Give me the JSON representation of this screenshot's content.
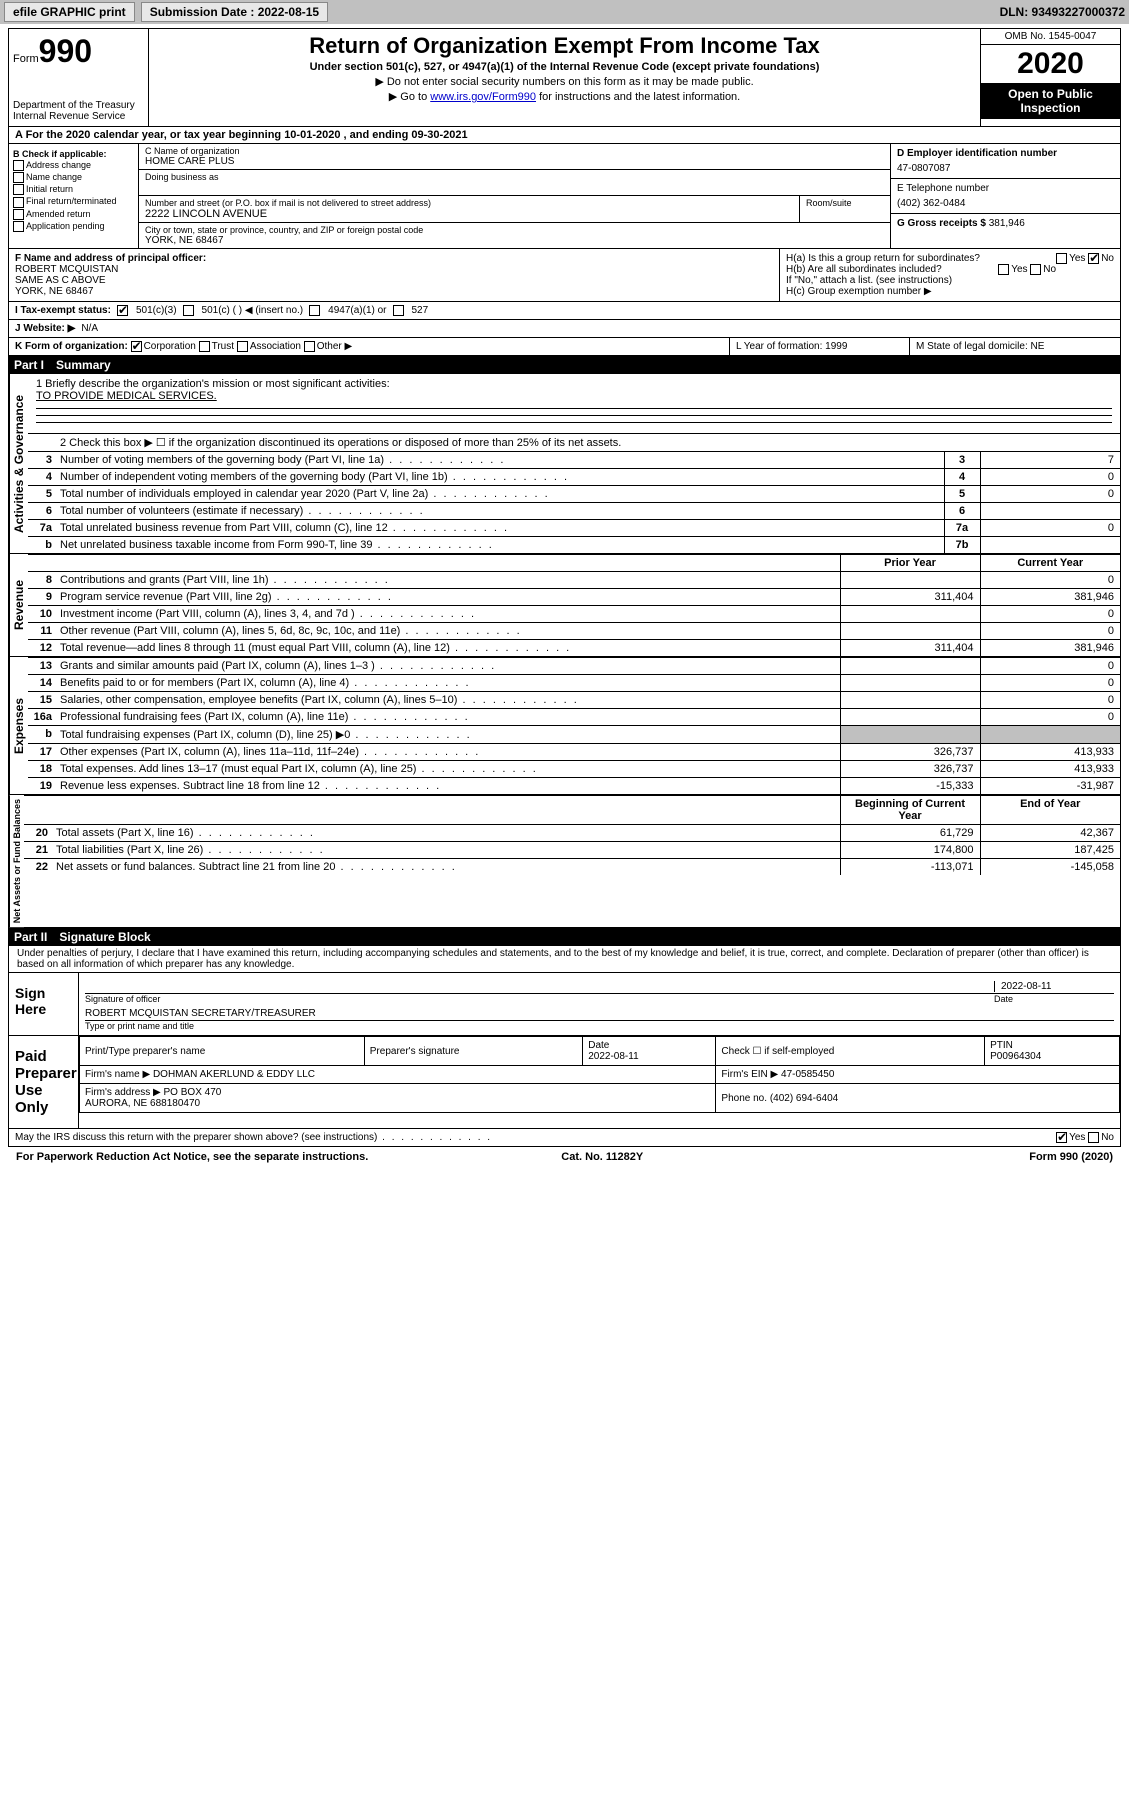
{
  "topbar": {
    "efile": "efile GRAPHIC print",
    "sub_label": "Submission Date : 2022-08-15",
    "dln": "DLN: 93493227000372"
  },
  "header": {
    "form_word": "Form",
    "form_num": "990",
    "dept": "Department of the Treasury\nInternal Revenue Service",
    "title": "Return of Organization Exempt From Income Tax",
    "sub": "Under section 501(c), 527, or 4947(a)(1) of the Internal Revenue Code (except private foundations)",
    "note1": "▶ Do not enter social security numbers on this form as it may be made public.",
    "note2_pre": "▶ Go to ",
    "note2_link": "www.irs.gov/Form990",
    "note2_post": " for instructions and the latest information.",
    "omb": "OMB No. 1545-0047",
    "year": "2020",
    "inspect": "Open to Public Inspection"
  },
  "rowA": "A For the 2020 calendar year, or tax year beginning 10-01-2020   , and ending 09-30-2021",
  "boxB": {
    "title": "B Check if applicable:",
    "items": [
      "Address change",
      "Name change",
      "Initial return",
      "Final return/terminated",
      "Amended return",
      "Application pending"
    ]
  },
  "boxC": {
    "name_label": "C Name of organization",
    "name": "HOME CARE PLUS",
    "dba_label": "Doing business as",
    "addr_label": "Number and street (or P.O. box if mail is not delivered to street address)",
    "room_label": "Room/suite",
    "addr": "2222 LINCOLN AVENUE",
    "city_label": "City or town, state or province, country, and ZIP or foreign postal code",
    "city": "YORK, NE  68467"
  },
  "boxD": {
    "ein_label": "D Employer identification number",
    "ein": "47-0807087",
    "phone_label": "E Telephone number",
    "phone": "(402) 362-0484",
    "gross_label": "G Gross receipts $",
    "gross": "381,946"
  },
  "boxF": {
    "label": "F  Name and address of principal officer:",
    "name": "ROBERT MCQUISTAN",
    "l2": "SAME AS C ABOVE",
    "l3": "YORK, NE  68467"
  },
  "boxH": {
    "a": "H(a)  Is this a group return for subordinates?",
    "a_yes": "Yes",
    "a_no": "No",
    "b": "H(b)  Are all subordinates included?",
    "b_yes": "Yes",
    "b_no": "No",
    "b_note": "If \"No,\" attach a list. (see instructions)",
    "c": "H(c)  Group exemption number ▶"
  },
  "rowI": {
    "label": "I   Tax-exempt status:",
    "o1": "501(c)(3)",
    "o2": "501(c) (  ) ◀ (insert no.)",
    "o3": "4947(a)(1) or",
    "o4": "527"
  },
  "rowJ": {
    "label": "J   Website: ▶",
    "val": "N/A"
  },
  "rowK": {
    "k": "K Form of organization:",
    "k1": "Corporation",
    "k2": "Trust",
    "k3": "Association",
    "k4": "Other ▶",
    "l": "L Year of formation: 1999",
    "m": "M State of legal domicile: NE"
  },
  "part1": {
    "num": "Part I",
    "title": "Summary"
  },
  "summary": {
    "line1_label": "1  Briefly describe the organization's mission or most significant activities:",
    "line1_val": "TO PROVIDE MEDICAL SERVICES.",
    "line2": "2   Check this box ▶ ☐  if the organization discontinued its operations or disposed of more than 25% of its net assets.",
    "rows_gov": [
      {
        "n": "3",
        "t": "Number of voting members of the governing body (Part VI, line 1a)",
        "b": "3",
        "v": "7"
      },
      {
        "n": "4",
        "t": "Number of independent voting members of the governing body (Part VI, line 1b)",
        "b": "4",
        "v": "0"
      },
      {
        "n": "5",
        "t": "Total number of individuals employed in calendar year 2020 (Part V, line 2a)",
        "b": "5",
        "v": "0"
      },
      {
        "n": "6",
        "t": "Total number of volunteers (estimate if necessary)",
        "b": "6",
        "v": ""
      },
      {
        "n": "7a",
        "t": "Total unrelated business revenue from Part VIII, column (C), line 12",
        "b": "7a",
        "v": "0"
      },
      {
        "n": "b",
        "t": "Net unrelated business taxable income from Form 990-T, line 39",
        "b": "7b",
        "v": ""
      }
    ],
    "col_prior": "Prior Year",
    "col_current": "Current Year",
    "rows_rev": [
      {
        "n": "8",
        "t": "Contributions and grants (Part VIII, line 1h)",
        "p": "",
        "c": "0"
      },
      {
        "n": "9",
        "t": "Program service revenue (Part VIII, line 2g)",
        "p": "311,404",
        "c": "381,946"
      },
      {
        "n": "10",
        "t": "Investment income (Part VIII, column (A), lines 3, 4, and 7d )",
        "p": "",
        "c": "0"
      },
      {
        "n": "11",
        "t": "Other revenue (Part VIII, column (A), lines 5, 6d, 8c, 9c, 10c, and 11e)",
        "p": "",
        "c": "0"
      },
      {
        "n": "12",
        "t": "Total revenue—add lines 8 through 11 (must equal Part VIII, column (A), line 12)",
        "p": "311,404",
        "c": "381,946"
      }
    ],
    "rows_exp": [
      {
        "n": "13",
        "t": "Grants and similar amounts paid (Part IX, column (A), lines 1–3 )",
        "p": "",
        "c": "0"
      },
      {
        "n": "14",
        "t": "Benefits paid to or for members (Part IX, column (A), line 4)",
        "p": "",
        "c": "0"
      },
      {
        "n": "15",
        "t": "Salaries, other compensation, employee benefits (Part IX, column (A), lines 5–10)",
        "p": "",
        "c": "0"
      },
      {
        "n": "16a",
        "t": "Professional fundraising fees (Part IX, column (A), line 11e)",
        "p": "",
        "c": "0"
      },
      {
        "n": "b",
        "t": "Total fundraising expenses (Part IX, column (D), line 25) ▶0",
        "p": "SHADE",
        "c": "SHADE"
      },
      {
        "n": "17",
        "t": "Other expenses (Part IX, column (A), lines 11a–11d, 11f–24e)",
        "p": "326,737",
        "c": "413,933"
      },
      {
        "n": "18",
        "t": "Total expenses. Add lines 13–17 (must equal Part IX, column (A), line 25)",
        "p": "326,737",
        "c": "413,933"
      },
      {
        "n": "19",
        "t": "Revenue less expenses. Subtract line 18 from line 12",
        "p": "-15,333",
        "c": "-31,987"
      }
    ],
    "col_begin": "Beginning of Current Year",
    "col_end": "End of Year",
    "rows_net": [
      {
        "n": "20",
        "t": "Total assets (Part X, line 16)",
        "p": "61,729",
        "c": "42,367"
      },
      {
        "n": "21",
        "t": "Total liabilities (Part X, line 26)",
        "p": "174,800",
        "c": "187,425"
      },
      {
        "n": "22",
        "t": "Net assets or fund balances. Subtract line 21 from line 20",
        "p": "-113,071",
        "c": "-145,058"
      }
    ]
  },
  "sidelabels": {
    "gov": "Activities & Governance",
    "rev": "Revenue",
    "exp": "Expenses",
    "net": "Net Assets or Fund Balances"
  },
  "part2": {
    "num": "Part II",
    "title": "Signature Block"
  },
  "penalties": "Under penalties of perjury, I declare that I have examined this return, including accompanying schedules and statements, and to the best of my knowledge and belief, it is true, correct, and complete. Declaration of preparer (other than officer) is based on all information of which preparer has any knowledge.",
  "sign": {
    "here": "Sign Here",
    "sig_label": "Signature of officer",
    "date_label": "Date",
    "date": "2022-08-11",
    "name": "ROBERT MCQUISTAN  SECRETARY/TREASURER",
    "name_label": "Type or print name and title"
  },
  "prep": {
    "title": "Paid Preparer Use Only",
    "h1": "Print/Type preparer's name",
    "h2": "Preparer's signature",
    "h3": "Date",
    "h3v": "2022-08-11",
    "h4": "Check ☐ if self-employed",
    "h5": "PTIN",
    "h5v": "P00964304",
    "firm_label": "Firm's name   ▶",
    "firm": "DOHMAN AKERLUND & EDDY LLC",
    "ein_label": "Firm's EIN ▶",
    "ein": "47-0585450",
    "addr_label": "Firm's address ▶",
    "addr": "PO BOX 470\nAURORA, NE  688180470",
    "phone_label": "Phone no.",
    "phone": "(402) 694-6404"
  },
  "discuss": {
    "q": "May the IRS discuss this return with the preparer shown above? (see instructions)",
    "yes": "Yes",
    "no": "No"
  },
  "footer": {
    "l": "For Paperwork Reduction Act Notice, see the separate instructions.",
    "m": "Cat. No. 11282Y",
    "r": "Form 990 (2020)"
  }
}
